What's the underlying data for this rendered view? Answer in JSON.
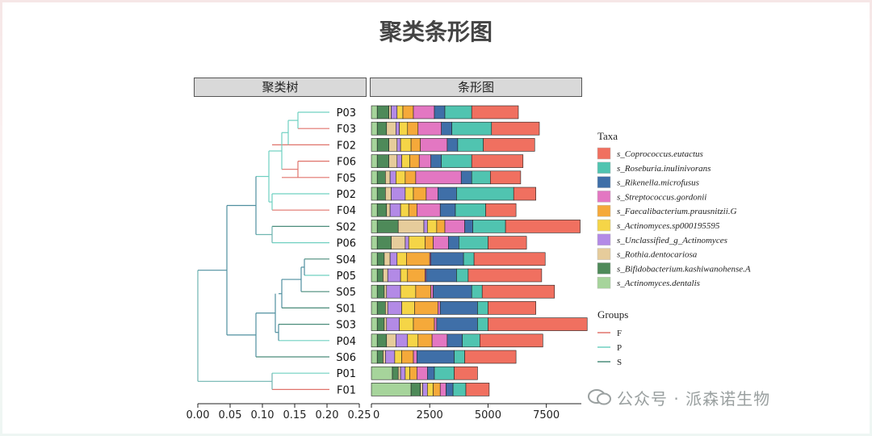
{
  "title": "聚类条形图",
  "panels": {
    "tree": "聚类树",
    "bars": "条形图"
  },
  "watermark": "公众号 · 派森诺生物",
  "chart_data": {
    "type": "bar",
    "orientation": "horizontal",
    "stacked": true,
    "samples": [
      "P03",
      "F03",
      "F02",
      "F06",
      "F05",
      "P02",
      "F04",
      "S02",
      "P06",
      "S04",
      "P05",
      "S05",
      "S01",
      "S03",
      "P04",
      "S06",
      "P01",
      "F01"
    ],
    "sample_groups": [
      "P",
      "F",
      "F",
      "F",
      "F",
      "P",
      "F",
      "S",
      "P",
      "S",
      "P",
      "S",
      "S",
      "S",
      "P",
      "S",
      "P",
      "F"
    ],
    "xlim": [
      0,
      9000
    ],
    "xticks": [
      0,
      2500,
      5000,
      7500
    ],
    "tree_xticks": [
      "0.00",
      "0.05",
      "0.10",
      "0.15",
      "0.20",
      "0.25"
    ],
    "series": [
      {
        "name": "s_Actinomyces.dentalis",
        "color": "#a6d49b",
        "values": [
          250,
          250,
          250,
          250,
          250,
          250,
          250,
          250,
          250,
          250,
          250,
          250,
          250,
          250,
          250,
          250,
          900,
          1700
        ]
      },
      {
        "name": "s_Bifidobacterium.kashiwanohense.A",
        "color": "#4e8a59",
        "values": [
          500,
          400,
          500,
          500,
          350,
          350,
          400,
          900,
          600,
          300,
          250,
          300,
          350,
          300,
          400,
          250,
          250,
          400
        ]
      },
      {
        "name": "s_Rothia.dentocariosa",
        "color": "#e6cc9b",
        "values": [
          100,
          400,
          350,
          350,
          200,
          250,
          150,
          1100,
          600,
          250,
          200,
          100,
          100,
          100,
          400,
          100,
          100,
          100
        ]
      },
      {
        "name": "s_Unclassified_g_Actinomyces",
        "color": "#b38ae6",
        "values": [
          250,
          150,
          150,
          200,
          250,
          600,
          450,
          150,
          150,
          300,
          550,
          600,
          600,
          550,
          500,
          400,
          200,
          200
        ]
      },
      {
        "name": "s_Actinomyces.sp000195595",
        "color": "#f5d547",
        "values": [
          250,
          350,
          450,
          350,
          400,
          350,
          350,
          400,
          700,
          400,
          300,
          650,
          550,
          600,
          450,
          300,
          200,
          250
        ]
      },
      {
        "name": "s_Faecalibacterium.prausnitzii.G",
        "color": "#f5a93a",
        "values": [
          450,
          450,
          400,
          400,
          450,
          550,
          350,
          350,
          350,
          1000,
          750,
          650,
          1000,
          900,
          600,
          500,
          300,
          300
        ]
      },
      {
        "name": "s_Streptococcus.gordonii",
        "color": "#e377c2",
        "values": [
          900,
          1000,
          1150,
          500,
          1950,
          500,
          1000,
          850,
          650,
          50,
          50,
          100,
          100,
          100,
          650,
          150,
          450,
          250
        ]
      },
      {
        "name": "s_Rikenella.microfusus",
        "color": "#3f6fa8",
        "values": [
          450,
          450,
          450,
          450,
          450,
          800,
          650,
          350,
          450,
          1400,
          1300,
          1650,
          1600,
          1750,
          650,
          1600,
          300,
          300
        ]
      },
      {
        "name": "s_Roseburia.inulinivorans",
        "color": "#50c4b0",
        "values": [
          1150,
          1700,
          1100,
          1300,
          800,
          2450,
          1300,
          1400,
          1250,
          450,
          500,
          450,
          450,
          450,
          750,
          450,
          850,
          550
        ]
      },
      {
        "name": "s_Coprococcus.eutactus",
        "color": "#f07060",
        "values": [
          2000,
          2050,
          2200,
          2200,
          1300,
          950,
          1300,
          3200,
          1650,
          3050,
          3150,
          3100,
          2050,
          4250,
          2700,
          2200,
          1000,
          1000
        ]
      }
    ],
    "legends": {
      "taxa_title": "Taxa",
      "groups_title": "Groups",
      "groups": [
        {
          "name": "F",
          "color": "#e0736b"
        },
        {
          "name": "P",
          "color": "#6fd0c0"
        },
        {
          "name": "S",
          "color": "#4a8c7a"
        }
      ]
    }
  }
}
